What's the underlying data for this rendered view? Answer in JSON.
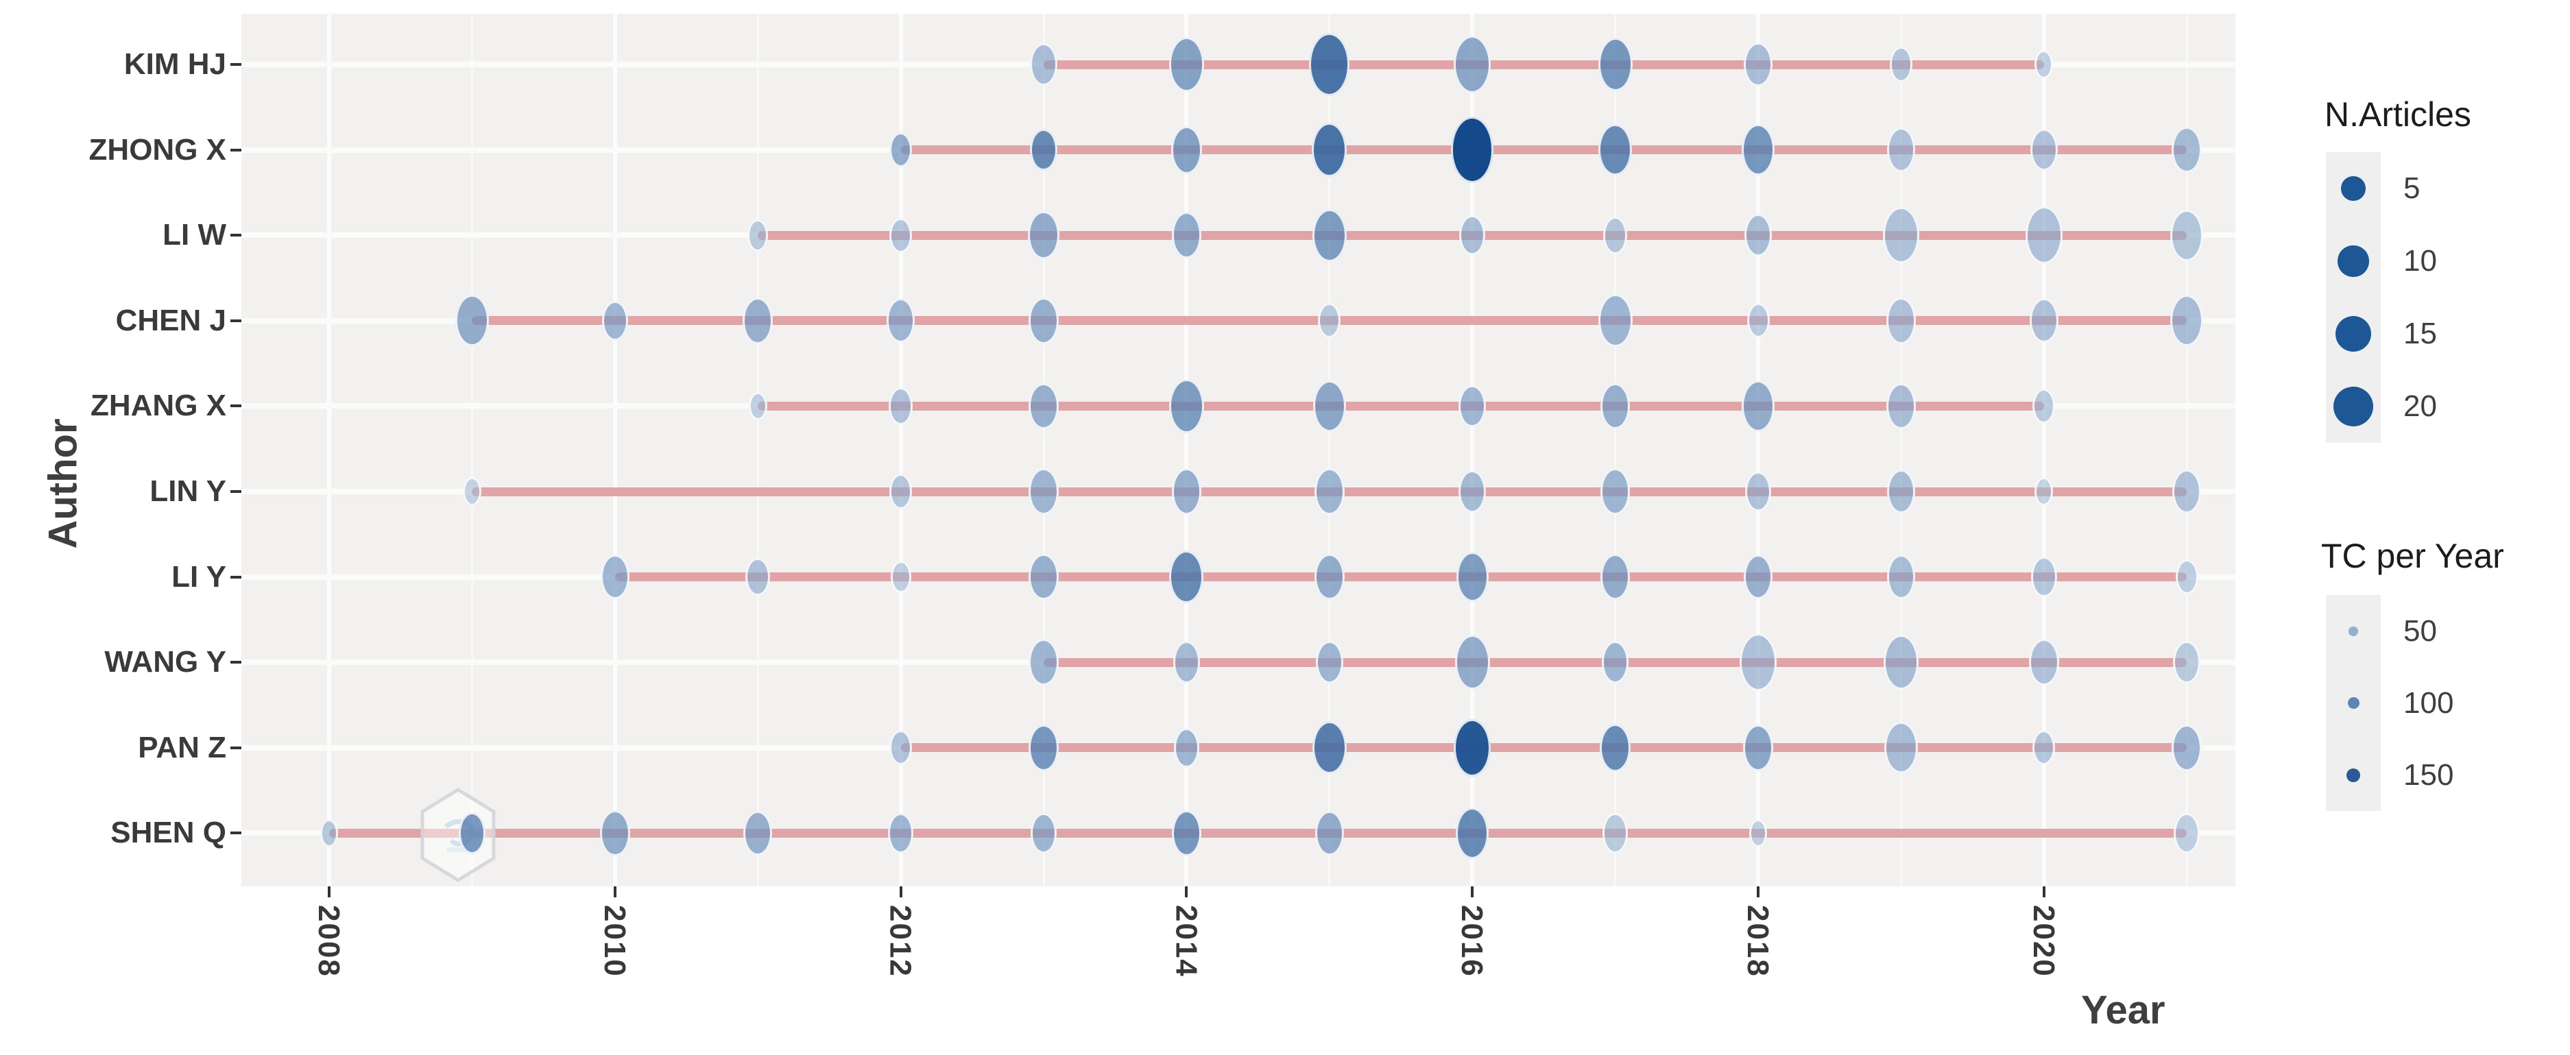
{
  "chart_data": {
    "type": "scatter",
    "title": "",
    "xlabel": "Year",
    "ylabel": "Author",
    "x_ticks": [
      2008,
      2010,
      2012,
      2014,
      2016,
      2018,
      2020
    ],
    "x_range": [
      2007.4,
      2021.6
    ],
    "grid": true,
    "watermark_icon": "bibliometrix-hexagon",
    "legend_position": "right",
    "size_legend": {
      "title": "N.Articles",
      "values": [
        5,
        10,
        15,
        20
      ]
    },
    "color_legend": {
      "title": "TC per Year",
      "values": [
        50,
        100,
        150
      ]
    },
    "colors": {
      "bubble_light": "#a3bcd8",
      "bubble_dark": "#14498c",
      "legend_circle": "#1d5796",
      "timeline_pink": "#e0a3a6",
      "panel_bg": "#f2f1f0",
      "grid_major": "#fcfcfc",
      "grid_minor": "#f8f8f7",
      "axis_text": "#3a3a3a"
    },
    "series": [
      {
        "author": "KIM HJ",
        "line_span": [
          2013,
          2020
        ],
        "points": [
          {
            "year": 2013,
            "n_articles": 7,
            "tc_per_year": 60
          },
          {
            "year": 2014,
            "n_articles": 14,
            "tc_per_year": 90
          },
          {
            "year": 2015,
            "n_articles": 20,
            "tc_per_year": 130
          },
          {
            "year": 2016,
            "n_articles": 16,
            "tc_per_year": 85
          },
          {
            "year": 2017,
            "n_articles": 13,
            "tc_per_year": 100
          },
          {
            "year": 2018,
            "n_articles": 8,
            "tc_per_year": 60
          },
          {
            "year": 2019,
            "n_articles": 4,
            "tc_per_year": 50
          },
          {
            "year": 2020,
            "n_articles": 2,
            "tc_per_year": 40
          }
        ]
      },
      {
        "author": "ZHONG X",
        "line_span": [
          2012,
          2021
        ],
        "points": [
          {
            "year": 2012,
            "n_articles": 4,
            "tc_per_year": 80
          },
          {
            "year": 2013,
            "n_articles": 7,
            "tc_per_year": 110
          },
          {
            "year": 2014,
            "n_articles": 10,
            "tc_per_year": 90
          },
          {
            "year": 2015,
            "n_articles": 14,
            "tc_per_year": 130
          },
          {
            "year": 2016,
            "n_articles": 23,
            "tc_per_year": 160
          },
          {
            "year": 2017,
            "n_articles": 12,
            "tc_per_year": 110
          },
          {
            "year": 2018,
            "n_articles": 12,
            "tc_per_year": 100
          },
          {
            "year": 2019,
            "n_articles": 8,
            "tc_per_year": 55
          },
          {
            "year": 2020,
            "n_articles": 7,
            "tc_per_year": 55
          },
          {
            "year": 2021,
            "n_articles": 9,
            "tc_per_year": 65
          }
        ]
      },
      {
        "author": "LI W",
        "line_span": [
          2011,
          2021
        ],
        "points": [
          {
            "year": 2011,
            "n_articles": 3,
            "tc_per_year": 45
          },
          {
            "year": 2012,
            "n_articles": 4,
            "tc_per_year": 50
          },
          {
            "year": 2013,
            "n_articles": 10,
            "tc_per_year": 80
          },
          {
            "year": 2014,
            "n_articles": 9,
            "tc_per_year": 80
          },
          {
            "year": 2015,
            "n_articles": 13,
            "tc_per_year": 95
          },
          {
            "year": 2016,
            "n_articles": 6,
            "tc_per_year": 60
          },
          {
            "year": 2017,
            "n_articles": 5,
            "tc_per_year": 50
          },
          {
            "year": 2018,
            "n_articles": 7,
            "tc_per_year": 60
          },
          {
            "year": 2019,
            "n_articles": 15,
            "tc_per_year": 55
          },
          {
            "year": 2020,
            "n_articles": 16,
            "tc_per_year": 55
          },
          {
            "year": 2021,
            "n_articles": 12,
            "tc_per_year": 50
          }
        ]
      },
      {
        "author": "CHEN J",
        "line_span": [
          2009,
          2021
        ],
        "points": [
          {
            "year": 2009,
            "n_articles": 12,
            "tc_per_year": 80
          },
          {
            "year": 2010,
            "n_articles": 6,
            "tc_per_year": 70
          },
          {
            "year": 2011,
            "n_articles": 9,
            "tc_per_year": 75
          },
          {
            "year": 2012,
            "n_articles": 8,
            "tc_per_year": 70
          },
          {
            "year": 2013,
            "n_articles": 9,
            "tc_per_year": 75
          },
          {
            "year": 2015,
            "n_articles": 4,
            "tc_per_year": 45
          },
          {
            "year": 2017,
            "n_articles": 13,
            "tc_per_year": 70
          },
          {
            "year": 2018,
            "n_articles": 4,
            "tc_per_year": 45
          },
          {
            "year": 2019,
            "n_articles": 9,
            "tc_per_year": 55
          },
          {
            "year": 2020,
            "n_articles": 8,
            "tc_per_year": 55
          },
          {
            "year": 2021,
            "n_articles": 12,
            "tc_per_year": 60
          }
        ]
      },
      {
        "author": "ZHANG X",
        "line_span": [
          2011,
          2020
        ],
        "points": [
          {
            "year": 2011,
            "n_articles": 2,
            "tc_per_year": 40
          },
          {
            "year": 2012,
            "n_articles": 5,
            "tc_per_year": 55
          },
          {
            "year": 2013,
            "n_articles": 9,
            "tc_per_year": 75
          },
          {
            "year": 2014,
            "n_articles": 14,
            "tc_per_year": 95
          },
          {
            "year": 2015,
            "n_articles": 12,
            "tc_per_year": 85
          },
          {
            "year": 2016,
            "n_articles": 7,
            "tc_per_year": 70
          },
          {
            "year": 2017,
            "n_articles": 9,
            "tc_per_year": 75
          },
          {
            "year": 2018,
            "n_articles": 12,
            "tc_per_year": 80
          },
          {
            "year": 2019,
            "n_articles": 9,
            "tc_per_year": 60
          },
          {
            "year": 2020,
            "n_articles": 4,
            "tc_per_year": 45
          }
        ]
      },
      {
        "author": "LIN Y",
        "line_span": [
          2009,
          2021
        ],
        "points": [
          {
            "year": 2009,
            "n_articles": 2,
            "tc_per_year": 35
          },
          {
            "year": 2012,
            "n_articles": 4,
            "tc_per_year": 50
          },
          {
            "year": 2013,
            "n_articles": 9,
            "tc_per_year": 70
          },
          {
            "year": 2014,
            "n_articles": 9,
            "tc_per_year": 75
          },
          {
            "year": 2015,
            "n_articles": 9,
            "tc_per_year": 70
          },
          {
            "year": 2016,
            "n_articles": 7,
            "tc_per_year": 65
          },
          {
            "year": 2017,
            "n_articles": 9,
            "tc_per_year": 70
          },
          {
            "year": 2018,
            "n_articles": 6,
            "tc_per_year": 55
          },
          {
            "year": 2019,
            "n_articles": 8,
            "tc_per_year": 60
          },
          {
            "year": 2020,
            "n_articles": 2,
            "tc_per_year": 35
          },
          {
            "year": 2021,
            "n_articles": 8,
            "tc_per_year": 55
          }
        ]
      },
      {
        "author": "LI Y",
        "line_span": [
          2010,
          2021
        ],
        "points": [
          {
            "year": 2010,
            "n_articles": 8,
            "tc_per_year": 70
          },
          {
            "year": 2011,
            "n_articles": 5,
            "tc_per_year": 55
          },
          {
            "year": 2012,
            "n_articles": 3,
            "tc_per_year": 40
          },
          {
            "year": 2013,
            "n_articles": 9,
            "tc_per_year": 75
          },
          {
            "year": 2014,
            "n_articles": 13,
            "tc_per_year": 110
          },
          {
            "year": 2015,
            "n_articles": 9,
            "tc_per_year": 80
          },
          {
            "year": 2016,
            "n_articles": 11,
            "tc_per_year": 95
          },
          {
            "year": 2017,
            "n_articles": 9,
            "tc_per_year": 80
          },
          {
            "year": 2018,
            "n_articles": 8,
            "tc_per_year": 75
          },
          {
            "year": 2019,
            "n_articles": 8,
            "tc_per_year": 60
          },
          {
            "year": 2020,
            "n_articles": 6,
            "tc_per_year": 50
          },
          {
            "year": 2021,
            "n_articles": 4,
            "tc_per_year": 40
          }
        ]
      },
      {
        "author": "WANG Y",
        "line_span": [
          2013,
          2021
        ],
        "points": [
          {
            "year": 2013,
            "n_articles": 9,
            "tc_per_year": 70
          },
          {
            "year": 2014,
            "n_articles": 7,
            "tc_per_year": 65
          },
          {
            "year": 2015,
            "n_articles": 7,
            "tc_per_year": 70
          },
          {
            "year": 2016,
            "n_articles": 14,
            "tc_per_year": 80
          },
          {
            "year": 2017,
            "n_articles": 7,
            "tc_per_year": 70
          },
          {
            "year": 2018,
            "n_articles": 16,
            "tc_per_year": 55
          },
          {
            "year": 2019,
            "n_articles": 14,
            "tc_per_year": 60
          },
          {
            "year": 2020,
            "n_articles": 9,
            "tc_per_year": 55
          },
          {
            "year": 2021,
            "n_articles": 7,
            "tc_per_year": 45
          }
        ]
      },
      {
        "author": "PAN Z",
        "line_span": [
          2012,
          2021
        ],
        "points": [
          {
            "year": 2012,
            "n_articles": 4,
            "tc_per_year": 55
          },
          {
            "year": 2013,
            "n_articles": 9,
            "tc_per_year": 100
          },
          {
            "year": 2014,
            "n_articles": 6,
            "tc_per_year": 70
          },
          {
            "year": 2015,
            "n_articles": 13,
            "tc_per_year": 120
          },
          {
            "year": 2016,
            "n_articles": 16,
            "tc_per_year": 150
          },
          {
            "year": 2017,
            "n_articles": 10,
            "tc_per_year": 110
          },
          {
            "year": 2018,
            "n_articles": 9,
            "tc_per_year": 85
          },
          {
            "year": 2019,
            "n_articles": 12,
            "tc_per_year": 60
          },
          {
            "year": 2020,
            "n_articles": 4,
            "tc_per_year": 50
          },
          {
            "year": 2021,
            "n_articles": 9,
            "tc_per_year": 70
          }
        ]
      },
      {
        "author": "SHEN Q",
        "line_span": [
          2008,
          2021
        ],
        "points": [
          {
            "year": 2008,
            "n_articles": 2,
            "tc_per_year": 50
          },
          {
            "year": 2009,
            "n_articles": 7,
            "tc_per_year": 100
          },
          {
            "year": 2010,
            "n_articles": 9,
            "tc_per_year": 80
          },
          {
            "year": 2011,
            "n_articles": 8,
            "tc_per_year": 75
          },
          {
            "year": 2012,
            "n_articles": 6,
            "tc_per_year": 70
          },
          {
            "year": 2013,
            "n_articles": 6,
            "tc_per_year": 70
          },
          {
            "year": 2014,
            "n_articles": 9,
            "tc_per_year": 100
          },
          {
            "year": 2015,
            "n_articles": 8,
            "tc_per_year": 80
          },
          {
            "year": 2016,
            "n_articles": 12,
            "tc_per_year": 110
          },
          {
            "year": 2017,
            "n_articles": 6,
            "tc_per_year": 45
          },
          {
            "year": 2018,
            "n_articles": 2,
            "tc_per_year": 40
          },
          {
            "year": 2021,
            "n_articles": 6,
            "tc_per_year": 40
          }
        ]
      }
    ]
  }
}
